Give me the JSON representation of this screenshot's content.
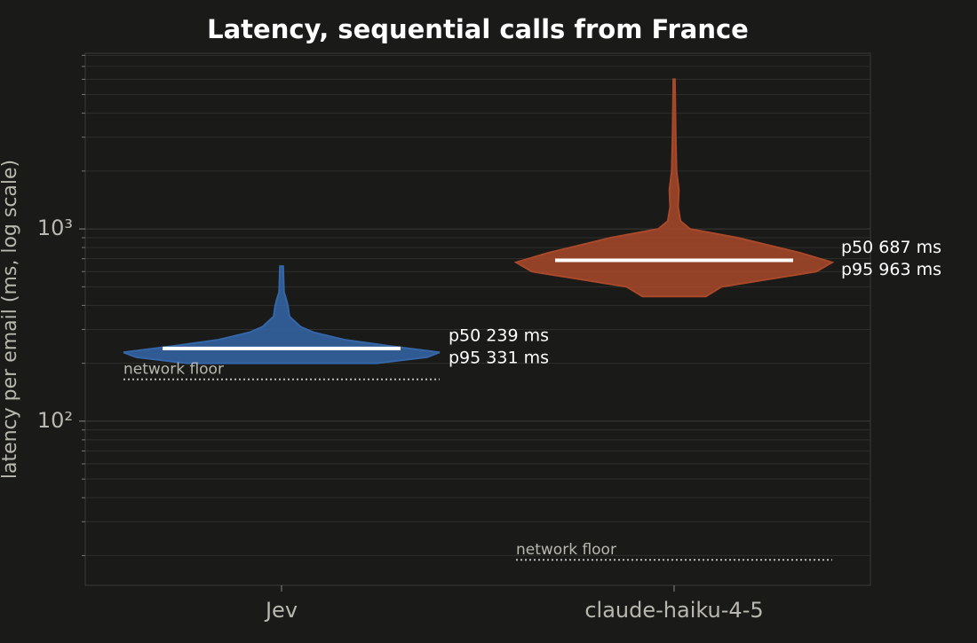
{
  "chart_data": {
    "type": "violin",
    "title": "Latency, sequential calls from France",
    "y_label": "latency per email (ms, log scale)",
    "log_scale": true,
    "grid": true,
    "ylim": [
      14,
      8200
    ],
    "yticks": [
      {
        "value": 100,
        "label": "10²"
      },
      {
        "value": 1000,
        "label": "10³"
      }
    ],
    "minor_yticks": [
      20,
      30,
      40,
      50,
      60,
      70,
      80,
      90,
      200,
      300,
      400,
      500,
      600,
      700,
      800,
      900,
      2000,
      3000,
      4000,
      5000,
      6000,
      7000,
      8000
    ],
    "categories": [
      "Jev",
      "claude-haiku-4-5"
    ],
    "floor_label": "network floor",
    "series": [
      {
        "name": "Jev",
        "color": "#3566a8",
        "values": [
          239,
          331
        ],
        "value_labels": [
          "p50 239 ms",
          "p95 331 ms"
        ],
        "network_floor": 165,
        "violin": {
          "y": [
            200,
            215,
            228,
            245,
            265,
            290,
            310,
            350,
            400,
            430,
            470,
            640
          ],
          "width": [
            0.6,
            0.92,
            1.0,
            0.7,
            0.4,
            0.2,
            0.12,
            0.05,
            0.04,
            0.03,
            0.015,
            0.01
          ]
        }
      },
      {
        "name": "claude-haiku-4-5",
        "color": "#a9492a",
        "values": [
          687,
          963
        ],
        "value_labels": [
          "p50 687 ms",
          "p95 963 ms"
        ],
        "network_floor": 19,
        "violin": {
          "y": [
            445,
            500,
            600,
            670,
            750,
            900,
            1000,
            1100,
            1300,
            1600,
            2000,
            3000,
            6000
          ],
          "width": [
            0.2,
            0.3,
            0.9,
            1.0,
            0.8,
            0.4,
            0.1,
            0.04,
            0.025,
            0.03,
            0.015,
            0.01,
            0.005
          ]
        }
      }
    ]
  }
}
